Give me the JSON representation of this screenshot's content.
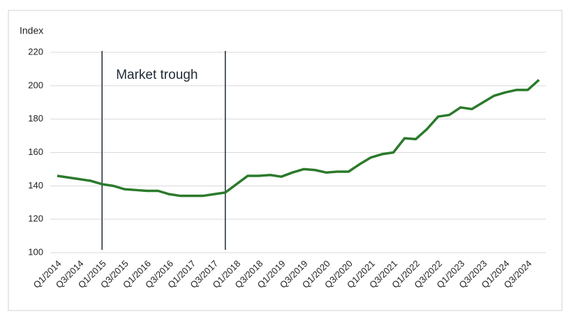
{
  "chart_data": {
    "type": "line",
    "y_label": "Index",
    "categories": [
      "Q1/2014",
      null,
      "Q3/2014",
      null,
      "Q1/2015",
      null,
      "Q3/2015",
      null,
      "Q1/2016",
      null,
      "Q3/2016",
      null,
      "Q1/2017",
      null,
      "Q3/2017",
      null,
      "Q1/2018",
      null,
      "Q3/2018",
      null,
      "Q1/2019",
      null,
      "Q3/2019",
      null,
      "Q1/2020",
      null,
      "Q3/2020",
      null,
      "Q1/2021",
      null,
      "Q3/2021",
      null,
      "Q1/2022",
      null,
      "Q3/2022",
      null,
      "Q1/2023",
      null,
      "Q3/2023",
      null,
      "Q1/2024",
      null,
      "Q3/2024",
      null
    ],
    "series": [
      {
        "color": "#2b7a2b",
        "values": [
          146,
          145,
          144,
          143,
          141,
          140,
          138,
          137.5,
          137,
          137,
          135,
          134,
          134,
          134,
          135,
          136,
          141,
          146,
          146,
          146.5,
          145.5,
          148,
          150,
          149.5,
          148,
          148.5,
          148.5,
          153,
          157,
          159,
          160,
          168.5,
          168,
          174,
          181.5,
          182.5,
          187,
          186,
          190,
          194,
          196,
          197.5,
          197.5,
          203.5
        ]
      }
    ],
    "ylim": [
      100,
      220
    ],
    "yticks": [
      100,
      120,
      140,
      160,
      180,
      200,
      220
    ],
    "grid": true,
    "annotation": {
      "text": "Market trough",
      "from_index": 4,
      "to_index": 15
    }
  }
}
